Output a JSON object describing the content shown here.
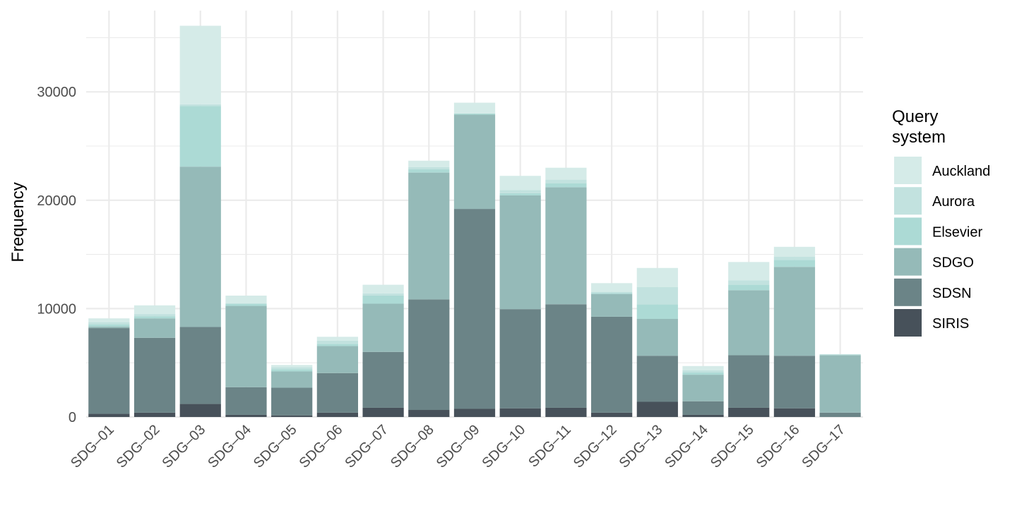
{
  "chart_data": {
    "type": "bar",
    "stacked": true,
    "title": "",
    "xlabel": "",
    "ylabel": "Frequency",
    "ylim": [
      0,
      37500
    ],
    "yticks": [
      0,
      10000,
      20000,
      30000
    ],
    "ytick_labels": [
      "0",
      "10000",
      "20000",
      "30000"
    ],
    "grid": true,
    "legend_position": "right",
    "legend_title_lines": [
      "Query",
      "system"
    ],
    "categories": [
      "SDG–01",
      "SDG–02",
      "SDG–03",
      "SDG–04",
      "SDG–05",
      "SDG–06",
      "SDG–07",
      "SDG–08",
      "SDG–09",
      "SDG–10",
      "SDG–11",
      "SDG–12",
      "SDG–13",
      "SDG–14",
      "SDG–15",
      "SDG–16",
      "SDG–17"
    ],
    "series": [
      {
        "name": "SIRIS",
        "color": "#47515a",
        "values": [
          300,
          400,
          1200,
          200,
          150,
          400,
          850,
          650,
          750,
          800,
          850,
          400,
          1400,
          200,
          850,
          800,
          0
        ]
      },
      {
        "name": "SDSN",
        "color": "#6b8487",
        "values": [
          7900,
          6900,
          7100,
          2550,
          2550,
          3650,
          5150,
          10200,
          18450,
          9150,
          9550,
          8850,
          4250,
          1250,
          4850,
          4850,
          400
        ]
      },
      {
        "name": "SDGO",
        "color": "#95bab8",
        "values": [
          150,
          1800,
          14800,
          7500,
          1500,
          2500,
          4450,
          11700,
          8700,
          10500,
          10800,
          2100,
          3400,
          2450,
          6000,
          8200,
          5300
        ]
      },
      {
        "name": "Elsevier",
        "color": "#acdad5",
        "values": [
          200,
          200,
          5600,
          200,
          200,
          200,
          750,
          300,
          100,
          200,
          350,
          100,
          1350,
          200,
          500,
          650,
          0
        ]
      },
      {
        "name": "Aurora",
        "color": "#c2e2df",
        "values": [
          200,
          200,
          150,
          0,
          200,
          300,
          200,
          200,
          0,
          300,
          350,
          100,
          1600,
          200,
          400,
          300,
          100
        ]
      },
      {
        "name": "Auckland",
        "color": "#d5ebe8",
        "values": [
          350,
          800,
          7250,
          750,
          200,
          350,
          800,
          600,
          1000,
          1300,
          1100,
          800,
          1750,
          400,
          1700,
          900,
          0
        ]
      }
    ],
    "legend_order": [
      "Auckland",
      "Aurora",
      "Elsevier",
      "SDGO",
      "SDSN",
      "SIRIS"
    ]
  }
}
